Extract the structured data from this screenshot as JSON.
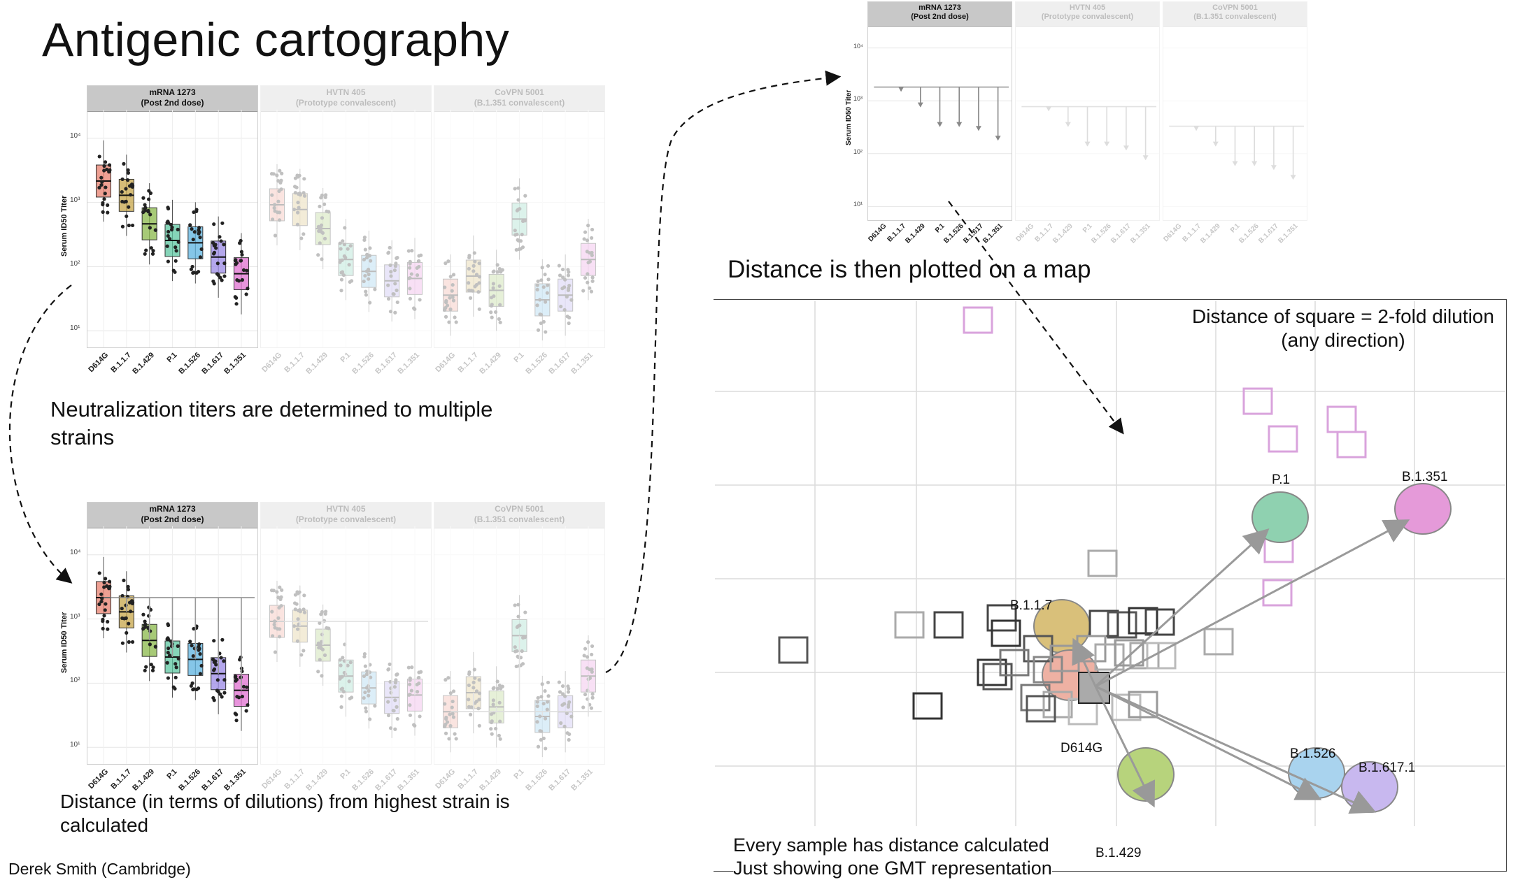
{
  "title": "Antigenic cartography",
  "captions": {
    "neutralization": "Neutralization titers are determined to multiple strains",
    "distance_calc": "Distance (in terms of dilutions) from highest strain is calculated",
    "plotted": "Distance is then plotted on a map",
    "square_note_1": "Distance of square = 2-fold dilution",
    "square_note_2": "(any direction)",
    "sample_note_1": "Every sample has distance calculated",
    "sample_note_2": "Just showing one GMT representation"
  },
  "credit": "Derek Smith (Cambridge)",
  "facets": [
    {
      "line1": "mRNA 1273",
      "line2": "(Post 2nd dose)"
    },
    {
      "line1": "HVTN 405",
      "line2": "(Prototype convalescent)"
    },
    {
      "line1": "CoVPN 5001",
      "line2": "(B.1.351 convalescent)"
    }
  ],
  "y_axis_label": "Serum ID50 Titer",
  "y_ticks": [
    "10⁴",
    "10³",
    "10²",
    "10¹"
  ],
  "strains": [
    "D614G",
    "B.1.1.7",
    "B.1.429",
    "P.1",
    "B.1.526",
    "B.1.617",
    "B.1.351"
  ],
  "strain_colors": [
    "#e8806f",
    "#c7a54a",
    "#8ab84a",
    "#5cc6a0",
    "#5cb3e0",
    "#9b8ae6",
    "#e070d0"
  ],
  "map_labels": {
    "p1": "P.1",
    "b1351": "B.1.351",
    "b117": "B.1.1.7",
    "d614g": "D614G",
    "b1526": "B.1.526",
    "b16171": "B.1.617.1",
    "b1429": "B.1.429"
  }
}
